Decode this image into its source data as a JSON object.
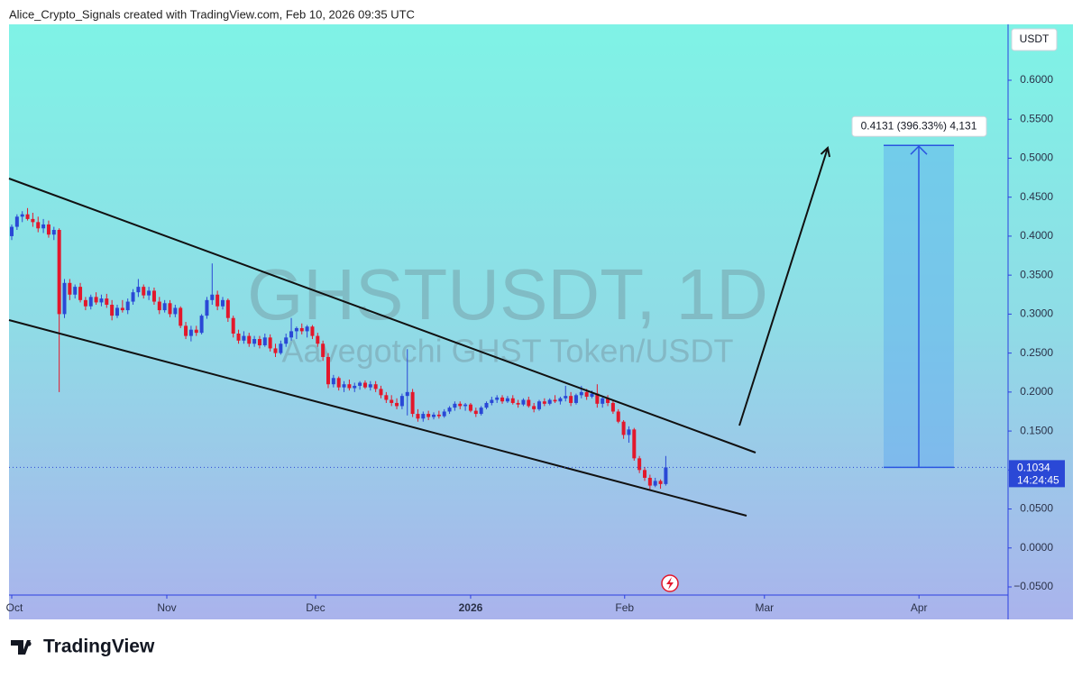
{
  "header": {
    "text": "Alice_Crypto_Signals created with TradingView.com, Feb 10, 2026 09:35 UTC"
  },
  "chart_data": {
    "type": "candlestick",
    "title": "GHSTUSDT, 1D",
    "subtitle": "Aavegotchi GHST Token/USDT",
    "currency": "USDT",
    "up_color": "#2a48d6",
    "down_color": "#e3172b",
    "ylim": [
      -0.0604,
      0.6717
    ],
    "yticks": [
      {
        "value": 0.6,
        "label": "0.6000"
      },
      {
        "value": 0.55,
        "label": "0.5500"
      },
      {
        "value": 0.5,
        "label": "0.5000"
      },
      {
        "value": 0.45,
        "label": "0.4500"
      },
      {
        "value": 0.4,
        "label": "0.4000"
      },
      {
        "value": 0.35,
        "label": "0.3500"
      },
      {
        "value": 0.3,
        "label": "0.3000"
      },
      {
        "value": 0.25,
        "label": "0.2500"
      },
      {
        "value": 0.2,
        "label": "0.2000"
      },
      {
        "value": 0.15,
        "label": "0.1500"
      },
      {
        "value": 0.1,
        "label": "0.1000"
      },
      {
        "value": 0.05,
        "label": "0.0500"
      },
      {
        "value": 0,
        "label": "0.0000"
      },
      {
        "value": -0.05,
        "label": "−0.0500"
      }
    ],
    "xticks": [
      {
        "value": 0,
        "label": "Oct"
      },
      {
        "value": 29.4,
        "label": "Nov"
      },
      {
        "value": 57.6,
        "label": "Dec"
      },
      {
        "value": 87,
        "label": "2026"
      },
      {
        "value": 116.2,
        "label": "Feb"
      },
      {
        "value": 142.7,
        "label": "Mar"
      },
      {
        "value": 172,
        "label": "Apr"
      }
    ],
    "countdown": "14:24:45",
    "measure_label": "0.4131 (396.33%) 4,131",
    "measure_value": 0.4131,
    "candles": [
      [
        0.4,
        0.415,
        0.395,
        0.412
      ],
      [
        0.412,
        0.428,
        0.408,
        0.425
      ],
      [
        0.425,
        0.432,
        0.418,
        0.428
      ],
      [
        0.428,
        0.436,
        0.42,
        0.422
      ],
      [
        0.422,
        0.43,
        0.412,
        0.418
      ],
      [
        0.418,
        0.425,
        0.405,
        0.41
      ],
      [
        0.41,
        0.422,
        0.404,
        0.415
      ],
      [
        0.415,
        0.42,
        0.398,
        0.402
      ],
      [
        0.402,
        0.412,
        0.395,
        0.408
      ],
      [
        0.408,
        0.41,
        0.2,
        0.3
      ],
      [
        0.3,
        0.345,
        0.295,
        0.34
      ],
      [
        0.34,
        0.345,
        0.318,
        0.325
      ],
      [
        0.325,
        0.338,
        0.32,
        0.335
      ],
      [
        0.335,
        0.34,
        0.315,
        0.318
      ],
      [
        0.318,
        0.322,
        0.305,
        0.31
      ],
      [
        0.31,
        0.325,
        0.306,
        0.322
      ],
      [
        0.322,
        0.328,
        0.312,
        0.315
      ],
      [
        0.315,
        0.325,
        0.31,
        0.32
      ],
      [
        0.32,
        0.326,
        0.308,
        0.312
      ],
      [
        0.312,
        0.318,
        0.292,
        0.298
      ],
      [
        0.298,
        0.312,
        0.295,
        0.308
      ],
      [
        0.308,
        0.318,
        0.302,
        0.305
      ],
      [
        0.305,
        0.32,
        0.3,
        0.316
      ],
      [
        0.316,
        0.332,
        0.312,
        0.328
      ],
      [
        0.328,
        0.345,
        0.322,
        0.335
      ],
      [
        0.335,
        0.338,
        0.32,
        0.324
      ],
      [
        0.324,
        0.335,
        0.318,
        0.33
      ],
      [
        0.33,
        0.334,
        0.312,
        0.316
      ],
      [
        0.316,
        0.322,
        0.3,
        0.305
      ],
      [
        0.305,
        0.318,
        0.302,
        0.314
      ],
      [
        0.314,
        0.318,
        0.296,
        0.3
      ],
      [
        0.3,
        0.312,
        0.296,
        0.308
      ],
      [
        0.308,
        0.31,
        0.282,
        0.285
      ],
      [
        0.285,
        0.29,
        0.268,
        0.272
      ],
      [
        0.272,
        0.285,
        0.265,
        0.28
      ],
      [
        0.28,
        0.285,
        0.272,
        0.276
      ],
      [
        0.276,
        0.3,
        0.274,
        0.298
      ],
      [
        0.298,
        0.322,
        0.294,
        0.318
      ],
      [
        0.318,
        0.365,
        0.312,
        0.325
      ],
      [
        0.325,
        0.33,
        0.305,
        0.31
      ],
      [
        0.31,
        0.322,
        0.306,
        0.318
      ],
      [
        0.318,
        0.32,
        0.29,
        0.295
      ],
      [
        0.295,
        0.298,
        0.27,
        0.275
      ],
      [
        0.275,
        0.28,
        0.262,
        0.266
      ],
      [
        0.266,
        0.278,
        0.262,
        0.272
      ],
      [
        0.272,
        0.276,
        0.258,
        0.262
      ],
      [
        0.262,
        0.272,
        0.258,
        0.268
      ],
      [
        0.268,
        0.272,
        0.256,
        0.26
      ],
      [
        0.26,
        0.275,
        0.258,
        0.27
      ],
      [
        0.27,
        0.274,
        0.252,
        0.256
      ],
      [
        0.256,
        0.262,
        0.245,
        0.25
      ],
      [
        0.25,
        0.266,
        0.248,
        0.262
      ],
      [
        0.262,
        0.275,
        0.258,
        0.27
      ],
      [
        0.27,
        0.295,
        0.266,
        0.278
      ],
      [
        0.278,
        0.284,
        0.268,
        0.282
      ],
      [
        0.282,
        0.288,
        0.274,
        0.278
      ],
      [
        0.278,
        0.286,
        0.27,
        0.284
      ],
      [
        0.284,
        0.286,
        0.268,
        0.272
      ],
      [
        0.272,
        0.276,
        0.258,
        0.262
      ],
      [
        0.262,
        0.266,
        0.24,
        0.245
      ],
      [
        0.245,
        0.25,
        0.205,
        0.21
      ],
      [
        0.21,
        0.222,
        0.206,
        0.218
      ],
      [
        0.218,
        0.22,
        0.202,
        0.206
      ],
      [
        0.206,
        0.214,
        0.2,
        0.21
      ],
      [
        0.21,
        0.216,
        0.202,
        0.205
      ],
      [
        0.205,
        0.212,
        0.2,
        0.208
      ],
      [
        0.208,
        0.214,
        0.203,
        0.212
      ],
      [
        0.212,
        0.215,
        0.204,
        0.206
      ],
      [
        0.206,
        0.214,
        0.202,
        0.21
      ],
      [
        0.21,
        0.214,
        0.2,
        0.204
      ],
      [
        0.204,
        0.208,
        0.192,
        0.196
      ],
      [
        0.196,
        0.2,
        0.186,
        0.19
      ],
      [
        0.19,
        0.196,
        0.182,
        0.186
      ],
      [
        0.186,
        0.192,
        0.178,
        0.182
      ],
      [
        0.182,
        0.198,
        0.178,
        0.195
      ],
      [
        0.195,
        0.255,
        0.17,
        0.2
      ],
      [
        0.2,
        0.204,
        0.168,
        0.172
      ],
      [
        0.172,
        0.178,
        0.162,
        0.166
      ],
      [
        0.166,
        0.175,
        0.162,
        0.172
      ],
      [
        0.172,
        0.176,
        0.164,
        0.168
      ],
      [
        0.168,
        0.174,
        0.165,
        0.171
      ],
      [
        0.171,
        0.176,
        0.166,
        0.169
      ],
      [
        0.169,
        0.178,
        0.167,
        0.175
      ],
      [
        0.175,
        0.182,
        0.172,
        0.18
      ],
      [
        0.18,
        0.188,
        0.176,
        0.185
      ],
      [
        0.185,
        0.188,
        0.178,
        0.182
      ],
      [
        0.182,
        0.186,
        0.176,
        0.184
      ],
      [
        0.184,
        0.186,
        0.174,
        0.176
      ],
      [
        0.176,
        0.18,
        0.168,
        0.172
      ],
      [
        0.172,
        0.182,
        0.17,
        0.18
      ],
      [
        0.18,
        0.188,
        0.178,
        0.186
      ],
      [
        0.186,
        0.194,
        0.183,
        0.19
      ],
      [
        0.19,
        0.196,
        0.186,
        0.193
      ],
      [
        0.193,
        0.196,
        0.185,
        0.188
      ],
      [
        0.188,
        0.195,
        0.186,
        0.192
      ],
      [
        0.192,
        0.196,
        0.184,
        0.186
      ],
      [
        0.186,
        0.19,
        0.18,
        0.184
      ],
      [
        0.184,
        0.192,
        0.182,
        0.19
      ],
      [
        0.19,
        0.194,
        0.18,
        0.182
      ],
      [
        0.182,
        0.186,
        0.174,
        0.178
      ],
      [
        0.178,
        0.19,
        0.176,
        0.188
      ],
      [
        0.188,
        0.192,
        0.182,
        0.185
      ],
      [
        0.185,
        0.192,
        0.183,
        0.19
      ],
      [
        0.19,
        0.196,
        0.186,
        0.188
      ],
      [
        0.188,
        0.194,
        0.184,
        0.192
      ],
      [
        0.192,
        0.208,
        0.188,
        0.195
      ],
      [
        0.195,
        0.2,
        0.182,
        0.186
      ],
      [
        0.186,
        0.198,
        0.184,
        0.196
      ],
      [
        0.196,
        0.208,
        0.192,
        0.2
      ],
      [
        0.2,
        0.204,
        0.19,
        0.194
      ],
      [
        0.194,
        0.202,
        0.192,
        0.198
      ],
      [
        0.198,
        0.21,
        0.18,
        0.185
      ],
      [
        0.185,
        0.195,
        0.18,
        0.192
      ],
      [
        0.192,
        0.196,
        0.182,
        0.186
      ],
      [
        0.186,
        0.19,
        0.172,
        0.175
      ],
      [
        0.175,
        0.178,
        0.16,
        0.162
      ],
      [
        0.162,
        0.164,
        0.14,
        0.145
      ],
      [
        0.145,
        0.156,
        0.135,
        0.152
      ],
      [
        0.152,
        0.154,
        0.112,
        0.115
      ],
      [
        0.115,
        0.118,
        0.096,
        0.1
      ],
      [
        0.1,
        0.104,
        0.086,
        0.09
      ],
      [
        0.09,
        0.094,
        0.074,
        0.08
      ],
      [
        0.08,
        0.09,
        0.078,
        0.086
      ],
      [
        0.086,
        0.088,
        0.076,
        0.082
      ],
      [
        0.082,
        0.118,
        0.08,
        0.1034
      ]
    ]
  },
  "footer": {
    "brand": "TradingView"
  }
}
